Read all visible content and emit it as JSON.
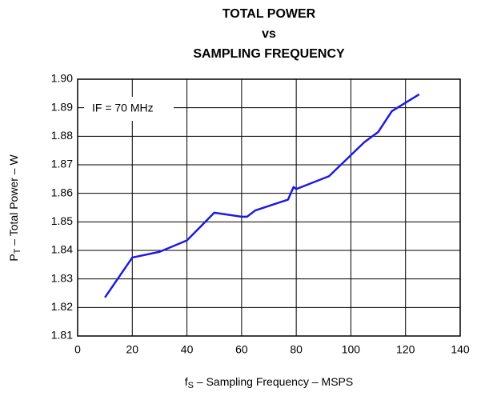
{
  "chart_data": {
    "type": "line",
    "title": [
      "TOTAL POWER",
      "vs",
      "SAMPLING FREQUENCY"
    ],
    "xlabel": [
      "f",
      "S",
      " – Sampling Frequency – MSPS"
    ],
    "ylabel": [
      "P",
      "T",
      " – Total Power – W"
    ],
    "annotation": "IF = 70 MHz",
    "x": [
      10,
      20,
      30,
      40,
      50,
      60,
      62,
      65,
      77,
      79,
      80,
      92,
      105,
      110,
      115,
      125
    ],
    "values": [
      1.8235,
      1.8375,
      1.8395,
      1.8435,
      1.8532,
      1.8518,
      1.8518,
      1.854,
      1.8578,
      1.8622,
      1.8615,
      1.866,
      1.878,
      1.8815,
      1.8888,
      1.8947
    ],
    "color": "#1c1ce0",
    "xlim": [
      0,
      140
    ],
    "xticks": [
      0,
      20,
      40,
      60,
      80,
      100,
      120,
      140
    ],
    "ylim": [
      1.81,
      1.9
    ],
    "yticks": [
      1.81,
      1.82,
      1.83,
      1.84,
      1.85,
      1.86,
      1.87,
      1.88,
      1.89,
      {
        "value": 1.9,
        "label": "1.90"
      }
    ],
    "grid": true
  }
}
